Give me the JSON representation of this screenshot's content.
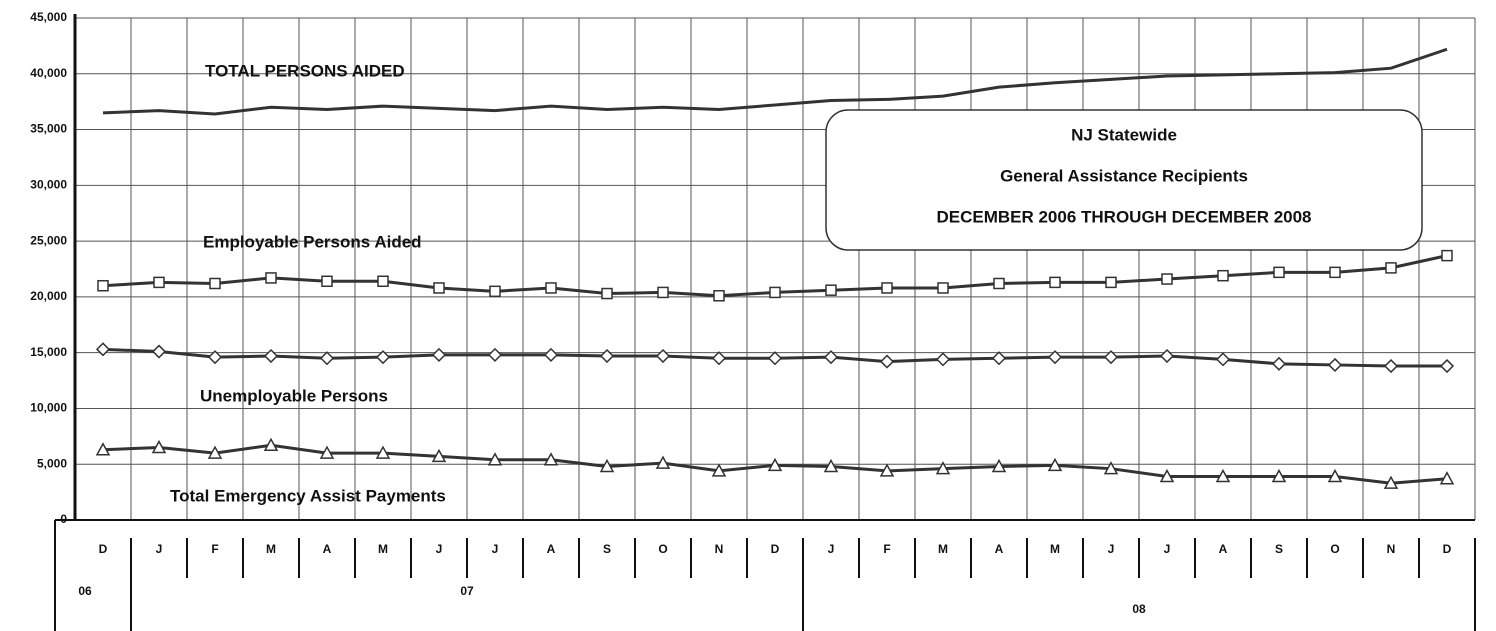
{
  "chart_data": {
    "type": "line",
    "annotation_box": [
      "NJ Statewide",
      "General Assistance Recipients",
      "DECEMBER 2006 THROUGH DECEMBER 2008"
    ],
    "categories": [
      "D",
      "J",
      "F",
      "M",
      "A",
      "M",
      "J",
      "J",
      "A",
      "S",
      "O",
      "N",
      "D",
      "J",
      "F",
      "M",
      "A",
      "M",
      "J",
      "J",
      "A",
      "S",
      "O",
      "N",
      "D"
    ],
    "x_groups": [
      {
        "label": "06",
        "count": 1
      },
      {
        "label": "07",
        "count": 12
      },
      {
        "label": "08",
        "count": 12
      }
    ],
    "ylim": [
      0,
      45000
    ],
    "yticks": [
      0,
      {
        "value": 5000,
        "label": "5,000"
      },
      {
        "value": 10000,
        "label": "10,000"
      },
      {
        "value": 15000,
        "label": "15,000"
      },
      {
        "value": 20000,
        "label": "20,000"
      },
      {
        "value": 25000,
        "label": "25,000"
      },
      {
        "value": 30000,
        "label": "30,000"
      },
      {
        "value": 35000,
        "label": "35,000"
      },
      {
        "value": 40000,
        "label": "40,000"
      },
      {
        "value": 45000,
        "label": "45,000"
      }
    ],
    "grid": true,
    "series": [
      {
        "name": "TOTAL PERSONS AIDED",
        "color": "#333333",
        "marker": "none",
        "values": [
          36500,
          36700,
          36400,
          37000,
          36800,
          37100,
          36900,
          36700,
          37100,
          36800,
          37000,
          36800,
          37200,
          37600,
          37700,
          38000,
          38800,
          39200,
          39500,
          39800,
          39900,
          40000,
          40100,
          40500,
          42200
        ]
      },
      {
        "name": "Employable Persons Aided",
        "color": "#333333",
        "marker": "square",
        "values": [
          21000,
          21300,
          21200,
          21700,
          21400,
          21400,
          20800,
          20500,
          20800,
          20300,
          20400,
          20100,
          20400,
          20600,
          20800,
          20800,
          21200,
          21300,
          21300,
          21600,
          21900,
          22200,
          22200,
          22600,
          23700
        ]
      },
      {
        "name": "Unemployable Persons",
        "color": "#333333",
        "marker": "diamond",
        "values": [
          15300,
          15100,
          14600,
          14700,
          14500,
          14600,
          14800,
          14800,
          14800,
          14700,
          14700,
          14500,
          14500,
          14600,
          14200,
          14400,
          14500,
          14600,
          14600,
          14700,
          14400,
          14000,
          13900,
          13800,
          13800
        ]
      },
      {
        "name": "Total Emergency Assist Payments",
        "color": "#333333",
        "marker": "triangle",
        "values": [
          6300,
          6500,
          6000,
          6700,
          6000,
          6000,
          5700,
          5400,
          5400,
          4800,
          5100,
          4400,
          4900,
          4800,
          4400,
          4600,
          4800,
          4900,
          4600,
          3900,
          3900,
          3900,
          3900,
          3300,
          3700
        ]
      }
    ]
  }
}
